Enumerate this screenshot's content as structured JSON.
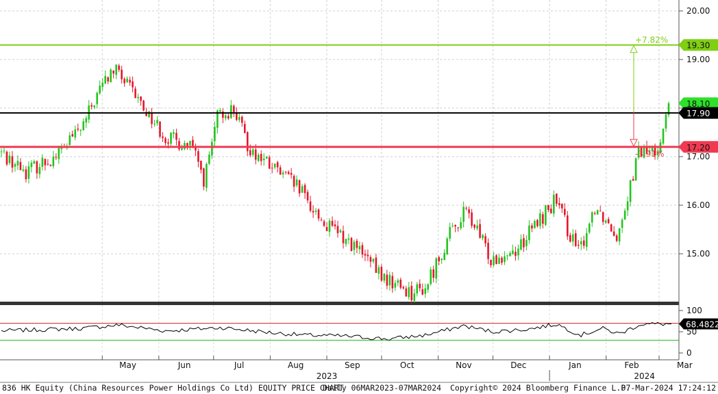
{
  "footer": {
    "security": "836 HK Equity (China Resources Power Holdings Co Ltd) EQUITY PRICE CHART",
    "period": "Daily 06MAR2023-07MAR2024",
    "copyright": "Copyright© 2024 Bloomberg Finance L.P.",
    "timestamp": "07-Mar-2024 17:24:12"
  },
  "colors": {
    "up": "#22c41e",
    "down": "#e8142a",
    "resistance": "#7fcf12",
    "support": "#f03a52",
    "last_close_line": "#000000",
    "rsi_line": "#000000",
    "rsi_upper": "#d02020",
    "rsi_lower": "#22b822",
    "background": "#ffffff"
  },
  "chart_data": {
    "type": "candlestick",
    "ylim": [
      14.0,
      20.0
    ],
    "y_ticks": [
      15.0,
      16.0,
      17.0,
      18.0,
      19.0,
      20.0
    ],
    "y_tick_labels": [
      "15.00",
      "16.00",
      "17.00",
      "18.00",
      "19.00",
      "20.00"
    ],
    "x_month_labels": [
      {
        "label": "May",
        "date": "2023-05-15"
      },
      {
        "label": "Jun",
        "date": "2023-06-15"
      },
      {
        "label": "Jul",
        "date": "2023-07-15"
      },
      {
        "label": "Aug",
        "date": "2023-08-15"
      },
      {
        "label": "Sep",
        "date": "2023-09-15"
      },
      {
        "label": "Oct",
        "date": "2023-10-15"
      },
      {
        "label": "Nov",
        "date": "2023-11-15"
      },
      {
        "label": "Dec",
        "date": "2023-12-15"
      },
      {
        "label": "Jan",
        "date": "2024-01-15"
      },
      {
        "label": "Feb",
        "date": "2024-02-15"
      },
      {
        "label": "Mar",
        "date": "2024-03-15"
      }
    ],
    "x_month_separators": [
      "2023-05-01",
      "2023-06-01",
      "2023-07-01",
      "2023-08-01",
      "2023-09-01",
      "2023-10-01",
      "2023-11-01",
      "2023-12-01",
      "2024-01-01",
      "2024-02-01",
      "2024-03-01"
    ],
    "x_year_labels": [
      {
        "label": "2023",
        "date": "2023-09-01"
      },
      {
        "label": "2024",
        "date": "2024-02-22"
      }
    ],
    "year_separator": "2024-01-01",
    "price_anchors": [
      {
        "date": "2023-03-06",
        "close": 17.1
      },
      {
        "date": "2023-03-20",
        "close": 16.7
      },
      {
        "date": "2023-04-05",
        "close": 17.0
      },
      {
        "date": "2023-04-20",
        "close": 17.6
      },
      {
        "date": "2023-05-01",
        "close": 18.5
      },
      {
        "date": "2023-05-08",
        "close": 18.8
      },
      {
        "date": "2023-05-22",
        "close": 18.1
      },
      {
        "date": "2023-06-05",
        "close": 17.4
      },
      {
        "date": "2023-06-19",
        "close": 17.2
      },
      {
        "date": "2023-06-26",
        "close": 16.5
      },
      {
        "date": "2023-07-03",
        "close": 17.8
      },
      {
        "date": "2023-07-12",
        "close": 18.0
      },
      {
        "date": "2023-07-20",
        "close": 17.2
      },
      {
        "date": "2023-08-01",
        "close": 16.8
      },
      {
        "date": "2023-08-15",
        "close": 16.4
      },
      {
        "date": "2023-08-31",
        "close": 15.6
      },
      {
        "date": "2023-09-15",
        "close": 15.2
      },
      {
        "date": "2023-10-02",
        "close": 14.5
      },
      {
        "date": "2023-10-18",
        "close": 14.2
      },
      {
        "date": "2023-10-25",
        "close": 14.3
      },
      {
        "date": "2023-11-06",
        "close": 15.3
      },
      {
        "date": "2023-11-16",
        "close": 15.9
      },
      {
        "date": "2023-11-30",
        "close": 14.9
      },
      {
        "date": "2023-12-14",
        "close": 15.1
      },
      {
        "date": "2024-01-04",
        "close": 16.1
      },
      {
        "date": "2024-01-17",
        "close": 15.0
      },
      {
        "date": "2024-01-26",
        "close": 16.0
      },
      {
        "date": "2024-02-07",
        "close": 15.4
      },
      {
        "date": "2024-02-19",
        "close": 17.1
      },
      {
        "date": "2024-02-28",
        "close": 17.1
      },
      {
        "date": "2024-03-05",
        "close": 17.8
      },
      {
        "date": "2024-03-07",
        "close": 18.1
      }
    ],
    "levels": [
      {
        "name": "resistance",
        "value": 19.3,
        "label": "19.30",
        "pct_label": "+7.82%"
      },
      {
        "name": "last_price",
        "value": 18.1,
        "label": "18.10"
      },
      {
        "name": "reference",
        "value": 17.9,
        "label": "17.90"
      },
      {
        "name": "support",
        "value": 17.2,
        "label": "17.20",
        "pct_label": "-3.91%"
      }
    ],
    "rsi": {
      "ylim": [
        0,
        100
      ],
      "y_ticks": [
        0,
        50,
        100
      ],
      "y_tick_labels": [
        "0",
        "50",
        "100"
      ],
      "upper": 70,
      "lower": 30,
      "last": 68.4822,
      "last_label": "68.4822",
      "anchors": [
        {
          "date": "2023-03-06",
          "value": 52
        },
        {
          "date": "2023-04-20",
          "value": 58
        },
        {
          "date": "2023-05-10",
          "value": 66
        },
        {
          "date": "2023-06-05",
          "value": 52
        },
        {
          "date": "2023-07-05",
          "value": 60
        },
        {
          "date": "2023-08-01",
          "value": 48
        },
        {
          "date": "2023-08-20",
          "value": 42
        },
        {
          "date": "2023-09-10",
          "value": 40
        },
        {
          "date": "2023-10-05",
          "value": 33
        },
        {
          "date": "2023-10-25",
          "value": 42
        },
        {
          "date": "2023-11-15",
          "value": 64
        },
        {
          "date": "2023-12-01",
          "value": 50
        },
        {
          "date": "2023-12-20",
          "value": 56
        },
        {
          "date": "2024-01-05",
          "value": 68
        },
        {
          "date": "2024-01-18",
          "value": 42
        },
        {
          "date": "2024-01-30",
          "value": 58
        },
        {
          "date": "2024-02-08",
          "value": 45
        },
        {
          "date": "2024-02-20",
          "value": 68
        },
        {
          "date": "2024-03-07",
          "value": 68.48
        }
      ]
    }
  }
}
